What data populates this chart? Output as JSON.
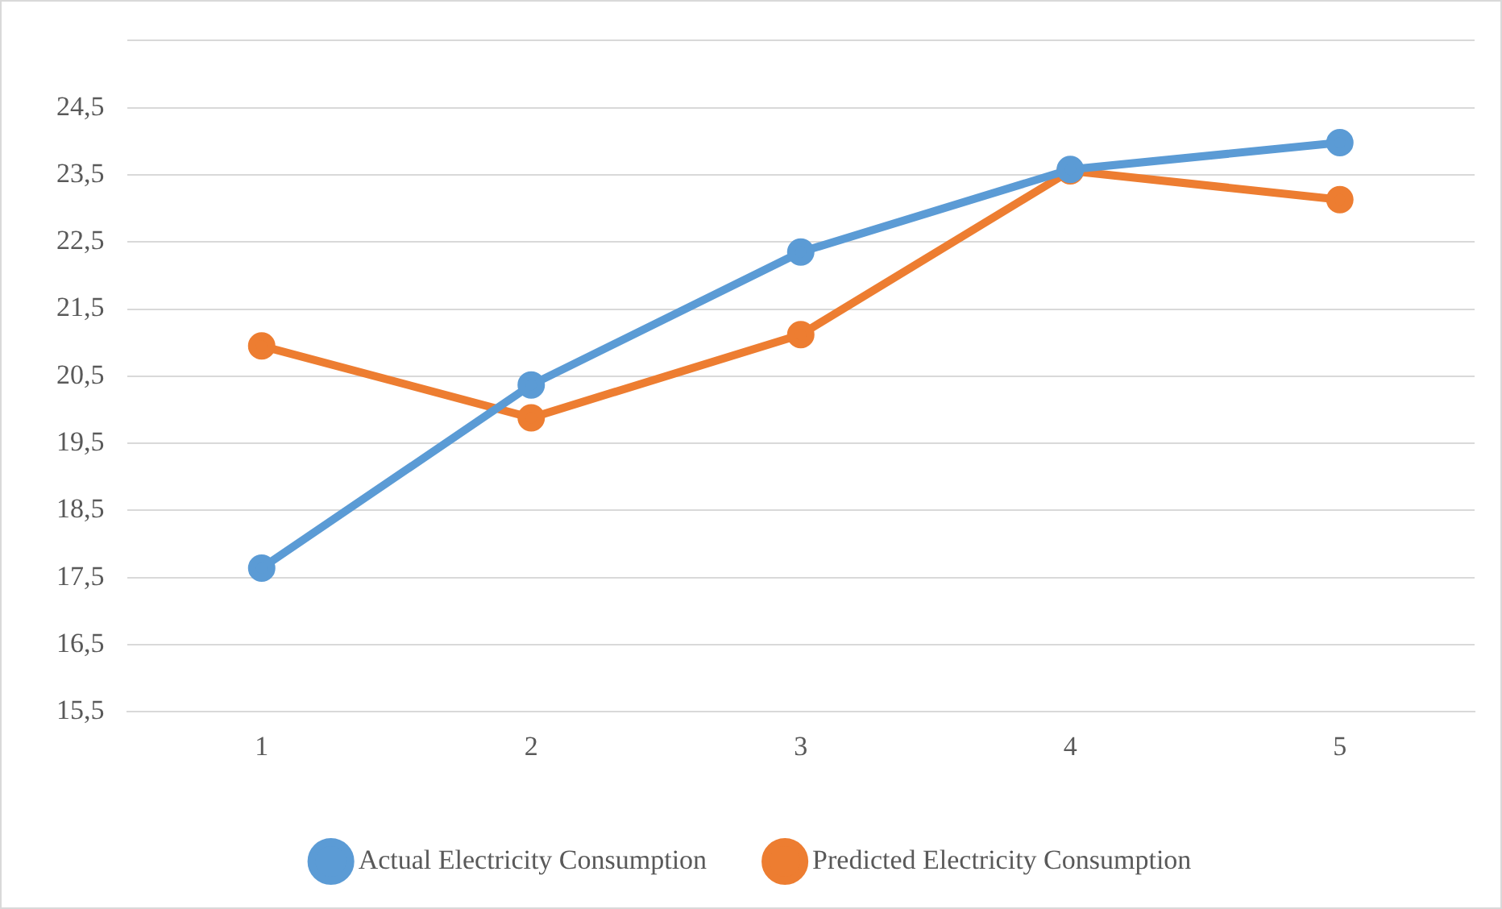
{
  "chart_data": {
    "type": "line",
    "categories": [
      "1",
      "2",
      "3",
      "4",
      "5"
    ],
    "series": [
      {
        "name": "Actual Electricity Consumption",
        "color": "#5b9bd5",
        "values": [
          17.64,
          20.37,
          22.35,
          23.58,
          23.98
        ]
      },
      {
        "name": "Predicted Electricity Consumption",
        "color": "#ed7d31",
        "values": [
          20.95,
          19.88,
          21.12,
          23.56,
          23.13
        ]
      }
    ],
    "ylim": [
      15.5,
      25.5
    ],
    "yticks": [
      {
        "value": 15.5,
        "label": "15,5"
      },
      {
        "value": 16.5,
        "label": "16,5"
      },
      {
        "value": 17.5,
        "label": "17,5"
      },
      {
        "value": 18.5,
        "label": "18,5"
      },
      {
        "value": 19.5,
        "label": "19,5"
      },
      {
        "value": 20.5,
        "label": "20,5"
      },
      {
        "value": 21.5,
        "label": "21,5"
      },
      {
        "value": 22.5,
        "label": "22,5"
      },
      {
        "value": 23.5,
        "label": "23,5"
      },
      {
        "value": 24.5,
        "label": "24,5"
      },
      {
        "value": 25.5,
        "label": null
      }
    ],
    "grid": "y",
    "legend": "bottom",
    "marker": "circle",
    "line_style": "solid"
  }
}
